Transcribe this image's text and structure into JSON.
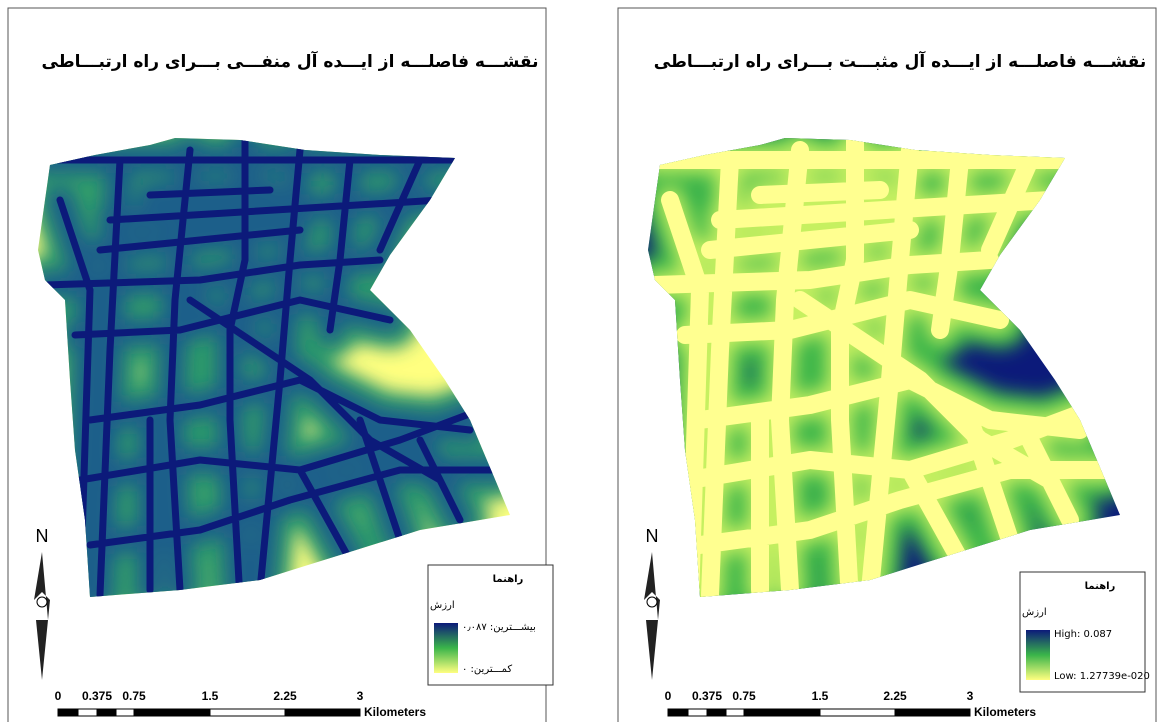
{
  "panels": [
    {
      "title": "نقشـــه فاصلـــه از ایـــده آل منفـــی بـــرای راه ارتبـــاطی",
      "legend": {
        "title": "راهنما",
        "subtitle": "ارزش",
        "high": "بیشـــترین: ۰٫۰۸۷",
        "low": "کمـــترین: ۰"
      },
      "north": "N",
      "scale": {
        "labels": [
          "0",
          "0.375",
          "0.75",
          "1.5",
          "2.25",
          "3"
        ],
        "unit": "Kilometers"
      }
    },
    {
      "title": "نقشـــه فاصلـــه از ایـــده آل مثبـــت بـــرای راه ارتبـــاطی",
      "legend": {
        "title": "راهنما",
        "subtitle": "ارزش",
        "high": "High: 0.087",
        "low": "Low: 1.27739e-020"
      },
      "north": "N",
      "scale": {
        "labels": [
          "0",
          "0.375",
          "0.75",
          "1.5",
          "2.25",
          "3"
        ],
        "unit": "Kilometers"
      }
    }
  ]
}
